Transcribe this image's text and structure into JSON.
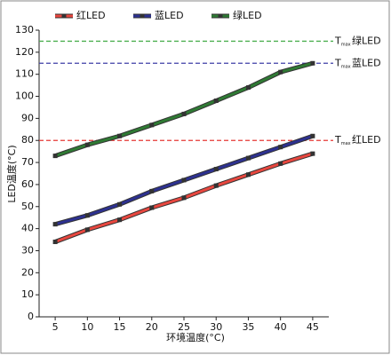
{
  "chart_data": {
    "type": "line",
    "x_label": "环境温度(°C)",
    "y_label": "LED温度(°C)",
    "x": [
      5,
      10,
      15,
      20,
      25,
      30,
      35,
      40,
      45
    ],
    "xlim": [
      2.5,
      47.5
    ],
    "xticks": [
      5,
      10,
      15,
      20,
      25,
      30,
      35,
      40,
      45
    ],
    "ylim": [
      0,
      130
    ],
    "yticks": [
      0,
      10,
      20,
      30,
      40,
      50,
      60,
      70,
      80,
      90,
      100,
      110,
      120,
      130
    ],
    "legend": "top",
    "series": [
      {
        "name": "红LED",
        "color": "#e8473f",
        "values": [
          34,
          39.5,
          44,
          49.5,
          54,
          59.5,
          64.5,
          69.5,
          74
        ]
      },
      {
        "name": "蓝LED",
        "color": "#2d3190",
        "values": [
          42,
          46,
          51,
          57,
          62,
          67,
          72,
          77,
          82
        ]
      },
      {
        "name": "绿LED",
        "color": "#2f7a34",
        "values": [
          73,
          78,
          82,
          87,
          92,
          98,
          104,
          111,
          115
        ]
      }
    ],
    "threshold_symbol": {
      "main": "T",
      "sub": "max"
    },
    "thresholds": [
      {
        "label": "绿LED",
        "value": 125,
        "color": "#4caf50"
      },
      {
        "label": "蓝LED",
        "value": 115,
        "color": "#3f3fa8"
      },
      {
        "label": "红LED",
        "value": 80,
        "color": "#e53935"
      }
    ]
  }
}
